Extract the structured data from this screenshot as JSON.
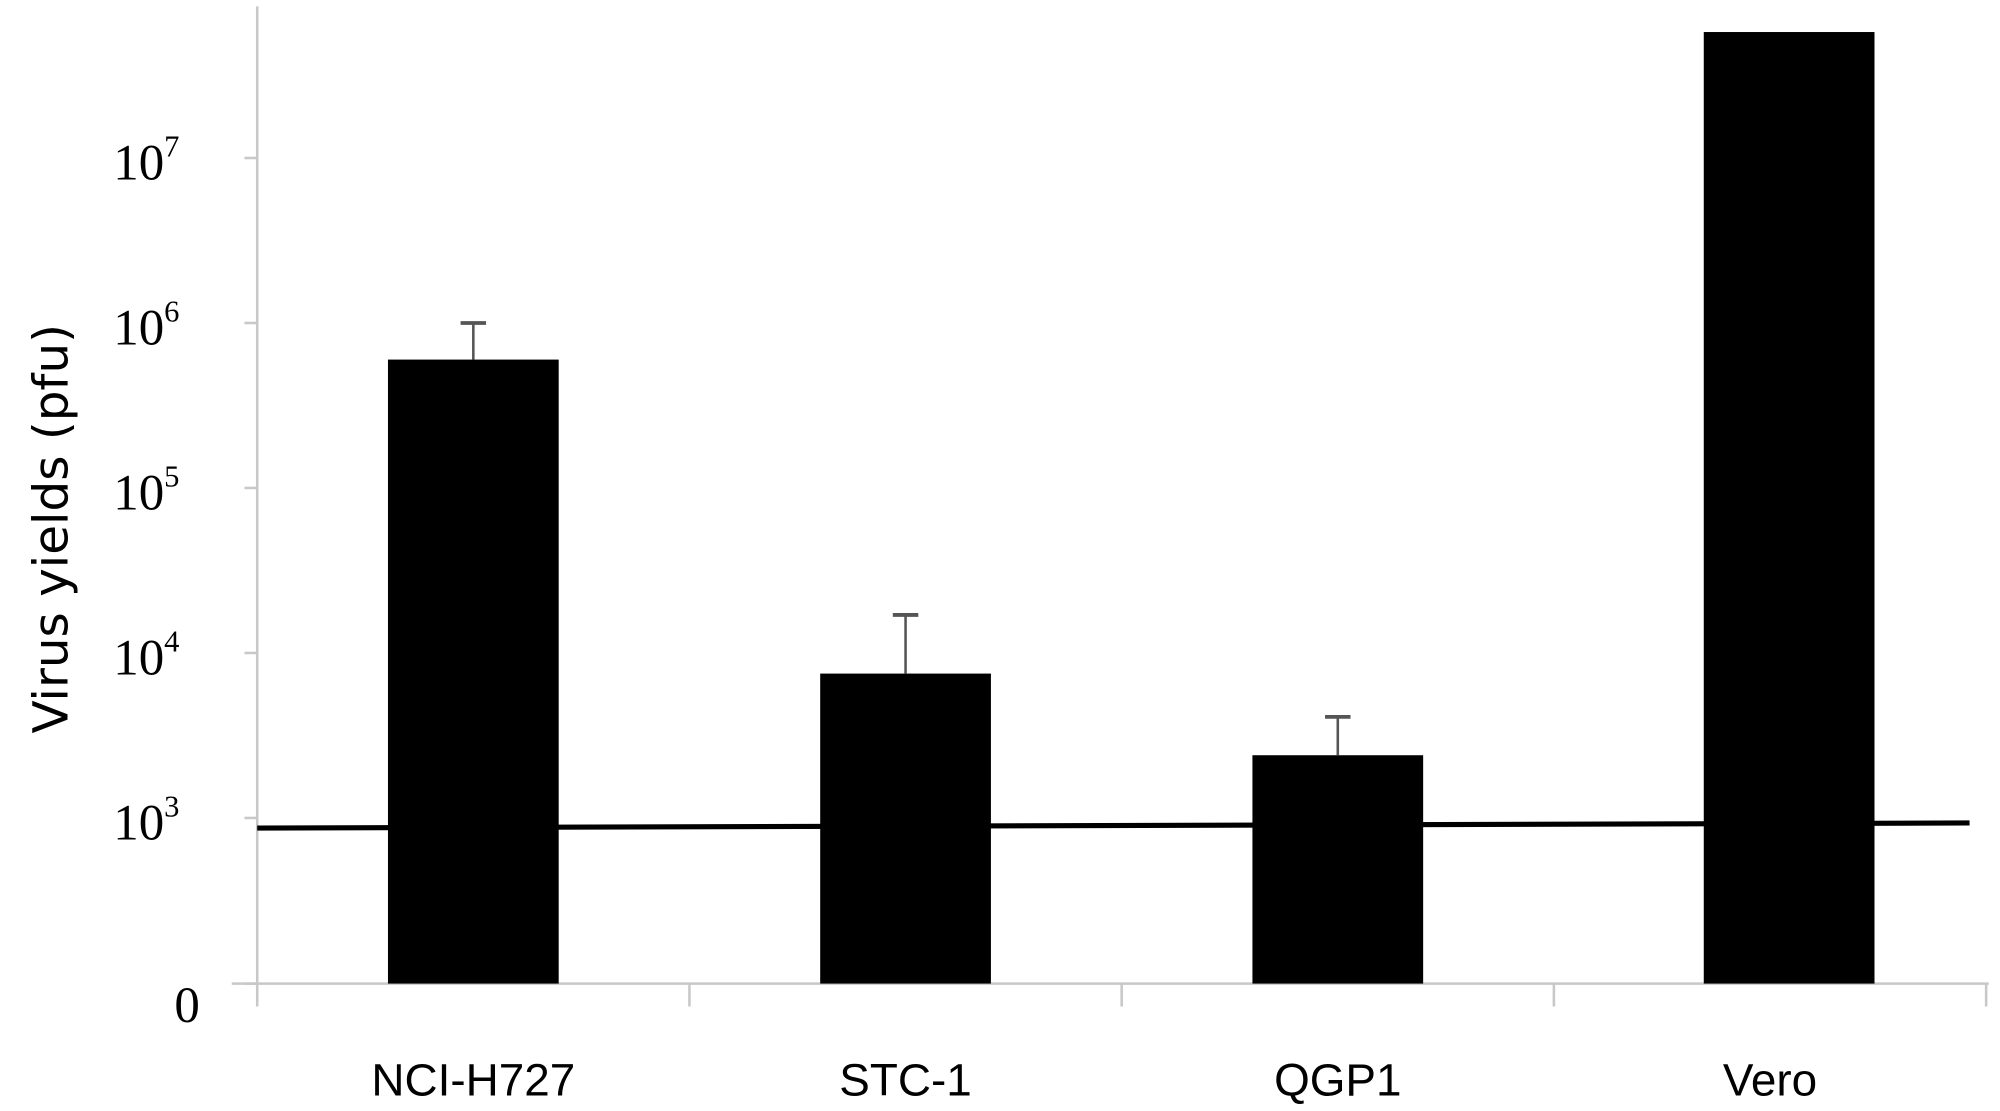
{
  "chart_data": {
    "type": "bar",
    "title": "",
    "xlabel": "",
    "ylabel": "Virus yields (pfu)",
    "yscale": "log",
    "ylim": [
      0,
      100000000
    ],
    "yticks": [
      {
        "label": "0",
        "value": 0
      },
      {
        "label": "10",
        "exp": "3",
        "value": 1000
      },
      {
        "label": "10",
        "exp": "4",
        "value": 10000
      },
      {
        "label": "10",
        "exp": "5",
        "value": 100000
      },
      {
        "label": "10",
        "exp": "6",
        "value": 1000000
      },
      {
        "label": "10",
        "exp": "7",
        "value": 10000000
      }
    ],
    "categories": [
      "NCI-H727",
      "STC-1",
      "QGP1",
      "Vero"
    ],
    "values": [
      600000,
      7500,
      2400,
      58000000
    ],
    "error_upper": [
      1000000,
      17000,
      4100,
      null
    ],
    "reference_line": {
      "value": 900
    },
    "grid": false,
    "bar_color": "#000000"
  }
}
